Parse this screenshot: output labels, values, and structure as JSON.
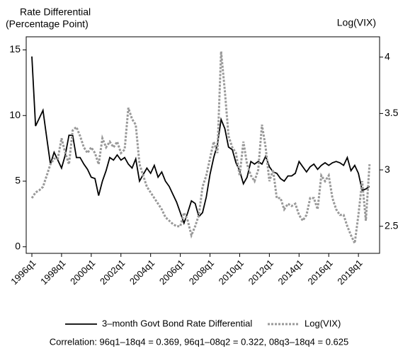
{
  "chart_data": {
    "type": "line",
    "ylabel": [
      "Rate Differential",
      "(Percentage Point)"
    ],
    "y2label": "Log(VIX)",
    "annotation": "Correlation: 96q1–18q4 = 0.369, 96q1–08q2 = 0.322, 08q3–18q4 = 0.625",
    "categories": [
      "1996q1",
      null,
      null,
      null,
      null,
      null,
      null,
      null,
      "1998q1",
      null,
      null,
      null,
      null,
      null,
      null,
      null,
      "2000q1",
      null,
      null,
      null,
      null,
      null,
      null,
      null,
      "2002q1",
      null,
      null,
      null,
      null,
      null,
      null,
      null,
      "2004q1",
      null,
      null,
      null,
      null,
      null,
      null,
      null,
      "2006q1",
      null,
      null,
      null,
      null,
      null,
      null,
      null,
      "2008q1",
      null,
      null,
      null,
      null,
      null,
      null,
      null,
      "2010q1",
      null,
      null,
      null,
      null,
      null,
      null,
      null,
      "2012q1",
      null,
      null,
      null,
      null,
      null,
      null,
      null,
      "2014q1",
      null,
      null,
      null,
      null,
      null,
      null,
      null,
      "2016q1",
      null,
      null,
      null,
      null,
      null,
      null,
      null,
      "2018q1",
      null,
      null,
      null
    ],
    "series": [
      {
        "name": "3–month Govt Bond Rate Differential",
        "color": "#000000",
        "dashed": false,
        "values": [
          14.5,
          9.2,
          9.8,
          10.4,
          8.3,
          6.3,
          7.2,
          6.6,
          6.0,
          7.0,
          8.5,
          8.5,
          6.8,
          6.8,
          6.3,
          5.9,
          5.3,
          5.2,
          3.9,
          5.0,
          5.8,
          6.8,
          6.6,
          7.0,
          6.6,
          6.8,
          6.3,
          6.0,
          6.7,
          5.0,
          5.5,
          6.0,
          5.6,
          6.2,
          5.3,
          5.7,
          5.0,
          4.6,
          4.0,
          3.4,
          2.6,
          1.8,
          2.6,
          3.5,
          3.3,
          2.3,
          2.6,
          3.8,
          5.5,
          6.8,
          7.8,
          9.7,
          9.0,
          7.6,
          7.4,
          6.4,
          5.8,
          4.8,
          5.3,
          6.5,
          6.3,
          6.5,
          6.3,
          6.9,
          6.1,
          5.7,
          5.6,
          5.2,
          5.0,
          5.4,
          5.4,
          5.6,
          6.5,
          6.1,
          5.7,
          6.1,
          6.3,
          5.9,
          6.2,
          6.4,
          6.2,
          6.4,
          6.5,
          6.4,
          6.2,
          6.8,
          5.8,
          6.2,
          5.6,
          4.3,
          4.4,
          4.6
        ]
      },
      {
        "name": "Log(VIX)",
        "color": "#999999",
        "dashed": true,
        "axis": "y2",
        "values": [
          2.75,
          2.8,
          2.82,
          2.85,
          2.95,
          3.05,
          3.1,
          3.1,
          3.28,
          3.15,
          3.05,
          3.35,
          3.38,
          3.3,
          3.2,
          3.15,
          3.2,
          3.15,
          3.05,
          3.28,
          3.2,
          3.25,
          3.2,
          3.25,
          3.15,
          3.18,
          3.55,
          3.45,
          3.4,
          3.05,
          2.95,
          2.85,
          2.8,
          2.75,
          2.7,
          2.65,
          2.58,
          2.55,
          2.52,
          2.5,
          2.5,
          2.62,
          2.55,
          2.42,
          2.5,
          2.6,
          2.85,
          2.95,
          3.1,
          3.25,
          3.15,
          4.05,
          3.7,
          3.3,
          3.2,
          3.15,
          2.95,
          3.25,
          3.05,
          2.95,
          2.9,
          3.0,
          3.4,
          3.2,
          2.9,
          3.0,
          2.75,
          2.75,
          2.65,
          2.7,
          2.68,
          2.7,
          2.6,
          2.55,
          2.6,
          2.75,
          2.75,
          2.65,
          2.95,
          2.9,
          2.95,
          2.75,
          2.65,
          2.6,
          2.6,
          2.5,
          2.42,
          2.35,
          2.6,
          2.9,
          2.55,
          3.05
        ]
      }
    ],
    "ylim": [
      -0.5,
      16
    ],
    "yticks": [
      0,
      5,
      10,
      15
    ],
    "y2lim": [
      2.26,
      4.18
    ],
    "y2ticks": [
      2.5,
      3,
      3.5,
      4
    ]
  }
}
